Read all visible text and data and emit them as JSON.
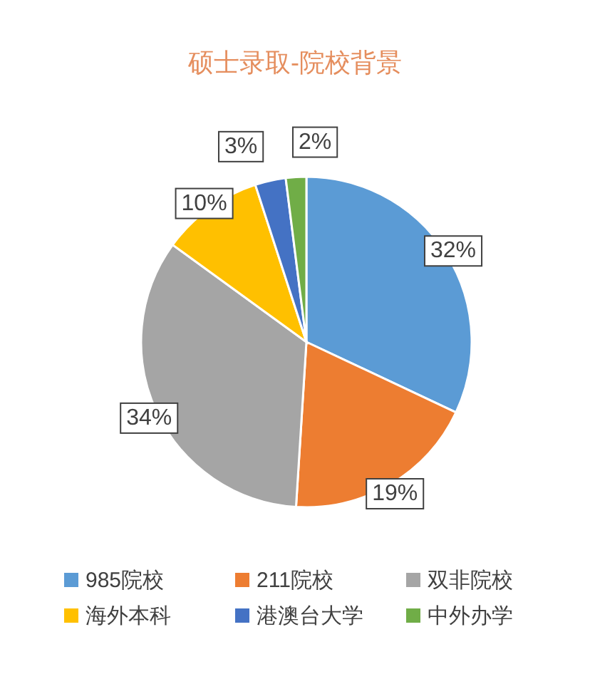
{
  "chart_data": {
    "type": "pie",
    "title": "硕士录取-院校背景",
    "categories": [
      "985院校",
      "211院校",
      "双非院校",
      "海外本科",
      "港澳台大学",
      "中外办学"
    ],
    "values": [
      32,
      19,
      34,
      10,
      3,
      2
    ],
    "colors": [
      "#5b9bd5",
      "#ed7d31",
      "#a5a5a5",
      "#ffc000",
      "#4472c4",
      "#70ad47"
    ],
    "value_labels": [
      "32%",
      "19%",
      "34%",
      "10%",
      "3%",
      "2%"
    ],
    "legend": "bottom"
  }
}
